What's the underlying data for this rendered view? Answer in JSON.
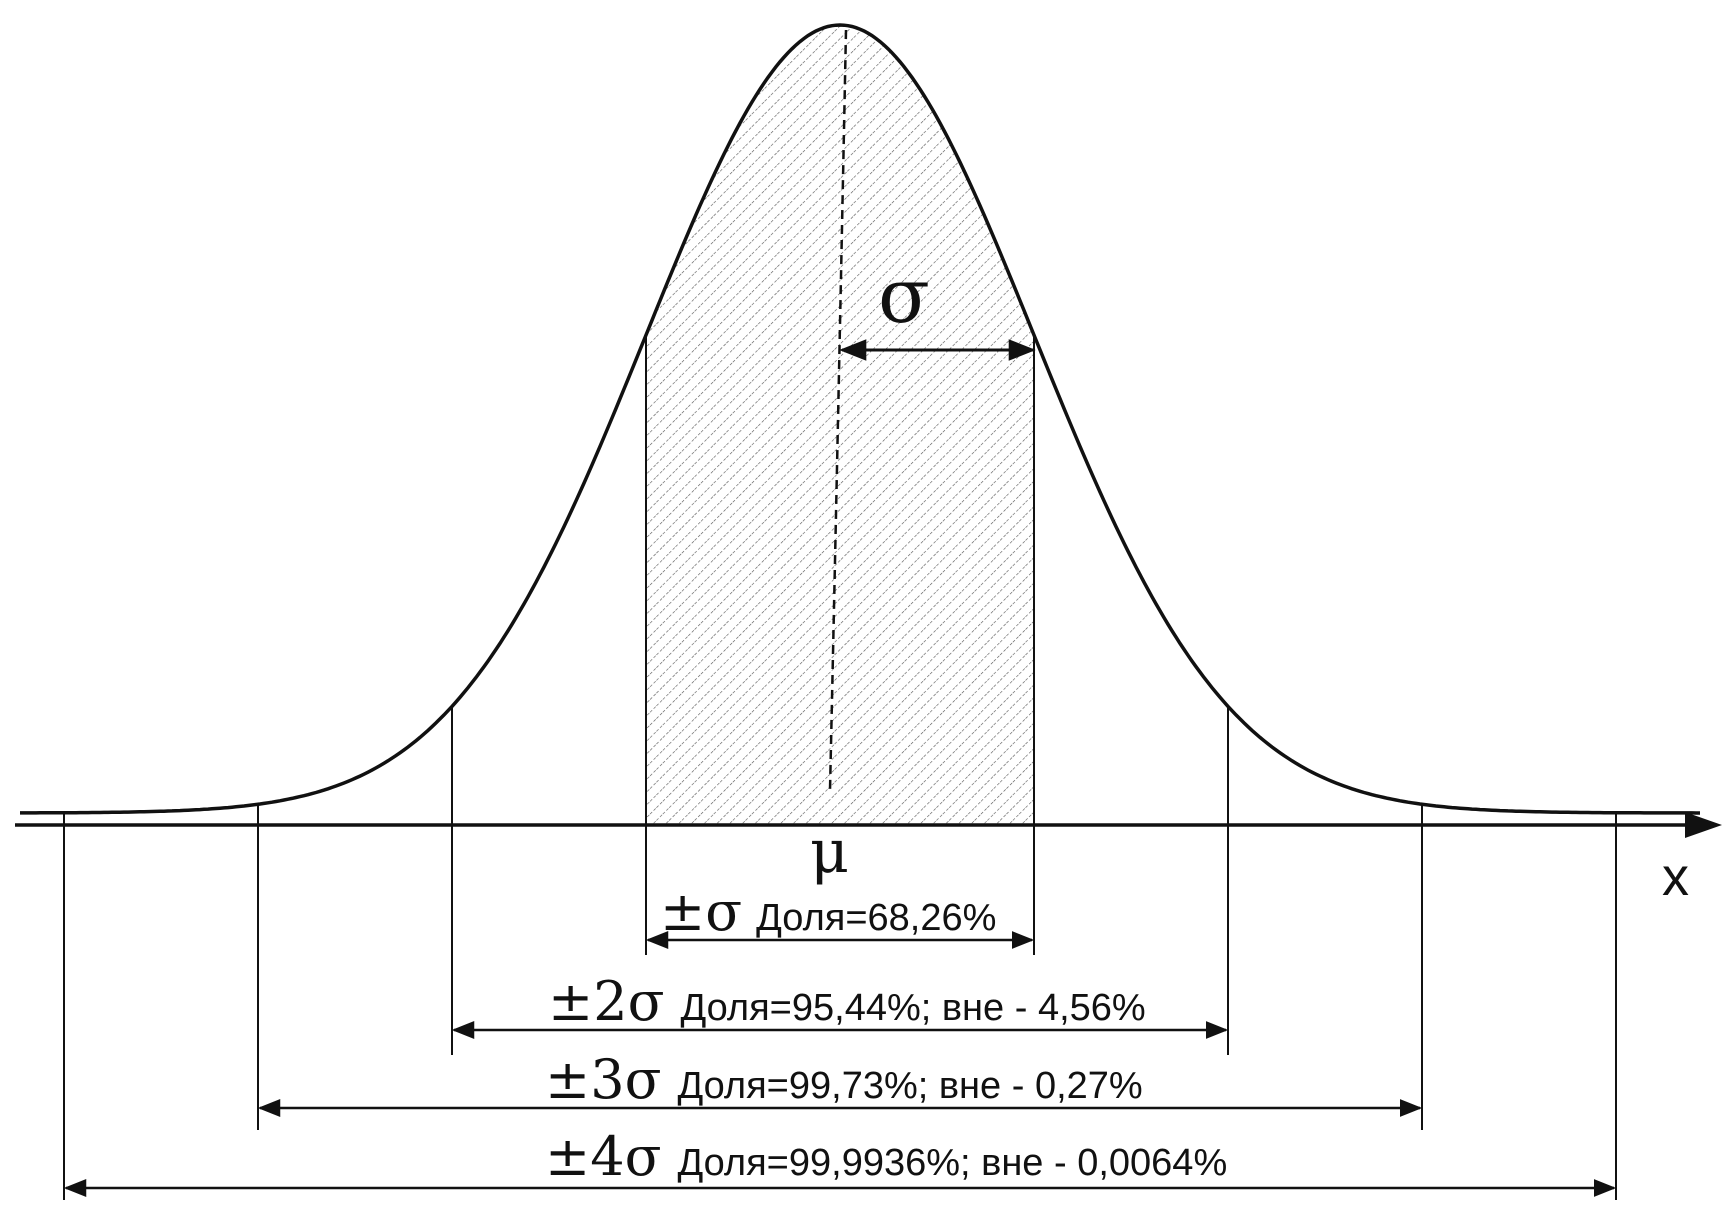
{
  "labels": {
    "sigma": "σ",
    "mu": "μ",
    "x_axis": "x"
  },
  "intervals": [
    {
      "k": 1,
      "sym": "±σ",
      "text": "Доля=68,26%"
    },
    {
      "k": 2,
      "sym": "±2σ",
      "text": "Доля=95,44%; вне - 4,56%"
    },
    {
      "k": 3,
      "sym": "±3σ",
      "text": "Доля=99,73%; вне - 0,27%"
    },
    {
      "k": 4,
      "sym": "±4σ",
      "text": "Доля=99,9936%; вне - 0,0064%"
    }
  ],
  "colors": {
    "ink": "#111111",
    "hatch": "#555555",
    "background": "#ffffff"
  }
}
